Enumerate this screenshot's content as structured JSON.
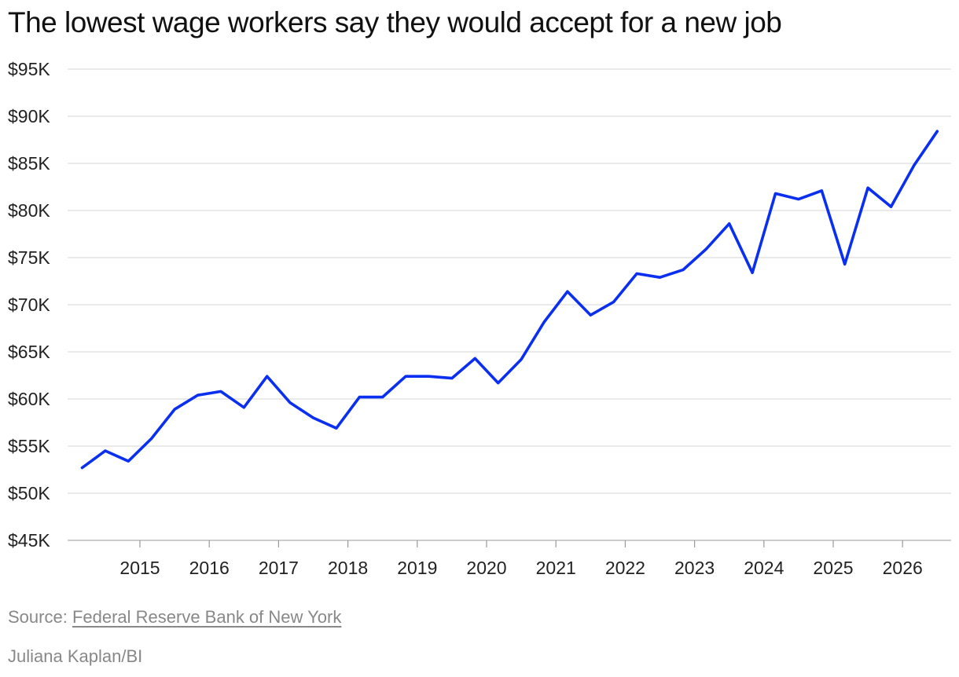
{
  "title": "The lowest wage workers say they would accept for a new job",
  "source_prefix": "Source: ",
  "source_name": "Federal Reserve Bank of New York",
  "credit": "Juliana Kaplan/BI",
  "colors": {
    "line": "#0a2ff0",
    "grid": "#dddddd",
    "text": "#222222",
    "muted": "#888888"
  },
  "chart_data": {
    "type": "line",
    "title": "The lowest wage workers say they would accept for a new job",
    "xlabel": "",
    "ylabel": "",
    "ylim": [
      45000,
      95000
    ],
    "y_ticks": [
      45000,
      50000,
      55000,
      60000,
      65000,
      70000,
      75000,
      80000,
      85000,
      90000,
      95000
    ],
    "y_tick_labels": [
      "$45K",
      "$50K",
      "$55K",
      "$60K",
      "$65K",
      "$70K",
      "$75K",
      "$80K",
      "$85K",
      "$90K",
      "$95K"
    ],
    "x_ticks": [
      2015,
      2016,
      2017,
      2018,
      2019,
      2020,
      2021,
      2022,
      2023,
      2024,
      2025,
      2026
    ],
    "x_tick_labels": [
      "2015",
      "2016",
      "2017",
      "2018",
      "2019",
      "2020",
      "2021",
      "2022",
      "2023",
      "2024",
      "2025",
      "2026"
    ],
    "grid": true,
    "series": [
      {
        "x": [
          "2014-03",
          "2014-07",
          "2014-11",
          "2015-03",
          "2015-07",
          "2015-11",
          "2016-03",
          "2016-07",
          "2016-11",
          "2017-03",
          "2017-07",
          "2017-11",
          "2018-03",
          "2018-07",
          "2018-11",
          "2019-03",
          "2019-07",
          "2019-11",
          "2020-03",
          "2020-07",
          "2020-11",
          "2021-03",
          "2021-07",
          "2021-11",
          "2022-03",
          "2022-07",
          "2022-11",
          "2023-03",
          "2023-07",
          "2023-11",
          "2024-03",
          "2024-07",
          "2024-11",
          "2025-03",
          "2025-07",
          "2025-11",
          "2026-03",
          "2026-07"
        ],
        "values": [
          52700,
          54500,
          53400,
          55800,
          58900,
          60400,
          60800,
          59100,
          62400,
          59600,
          58000,
          56900,
          60200,
          60200,
          62400,
          62400,
          62200,
          64300,
          61700,
          64200,
          68200,
          71400,
          68900,
          70300,
          73300,
          72900,
          73700,
          75900,
          78600,
          73400,
          81800,
          81200,
          82100,
          74300,
          82400,
          80400,
          84800,
          88400
        ]
      }
    ]
  }
}
